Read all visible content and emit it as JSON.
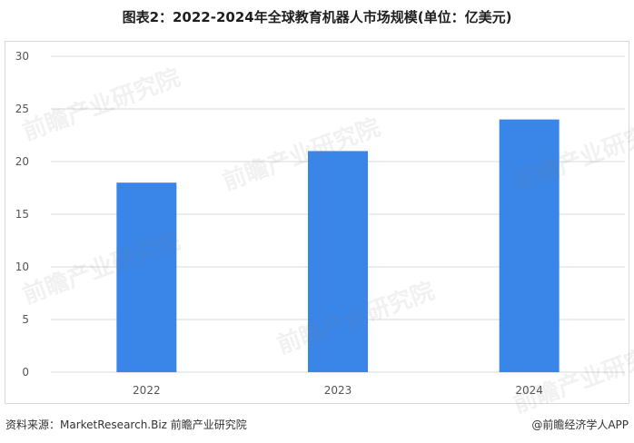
{
  "title": "图表2：2022-2024年全球教育机器人市场规模(单位：亿美元)",
  "chart_data": {
    "type": "bar",
    "categories": [
      "2022",
      "2023",
      "2024"
    ],
    "values": [
      18,
      21,
      24
    ],
    "ylim": [
      0,
      30
    ],
    "yticks": [
      0,
      5,
      10,
      15,
      20,
      25,
      30
    ],
    "grid": true,
    "bar_color": "#3a86e8",
    "grid_color": "#d9d9d9"
  },
  "footer": {
    "source": "资料来源：MarketResearch.Biz 前瞻产业研究院",
    "credit": "@前瞻经济学人APP"
  },
  "watermark_text": "前瞻产业研究院"
}
